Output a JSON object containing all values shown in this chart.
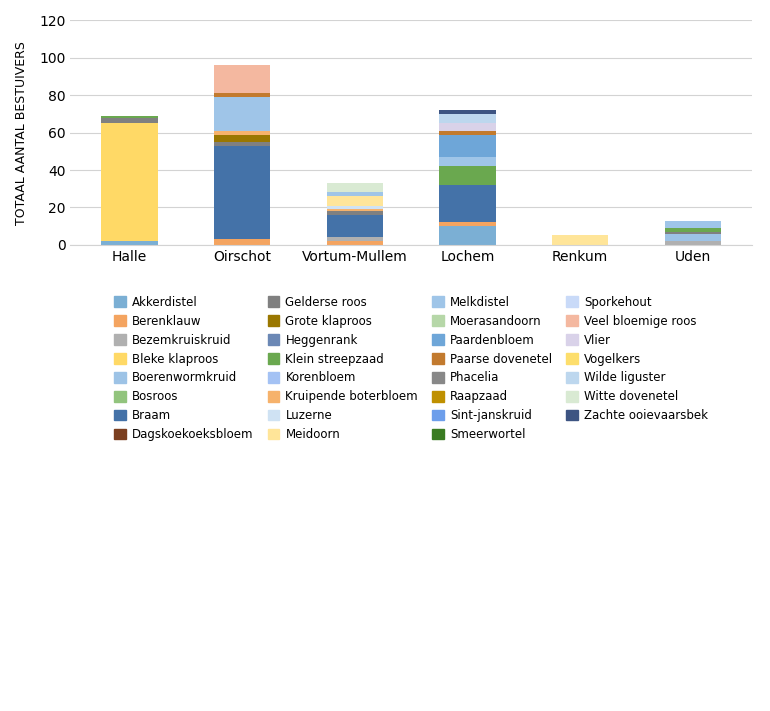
{
  "locations": [
    "Halle",
    "Oirschot",
    "Vortum-Mullem",
    "Lochem",
    "Renkum",
    "Uden"
  ],
  "ylabel": "TOTAAL AANTAL BESTUIVERS",
  "ylim": [
    0,
    120
  ],
  "yticks": [
    0,
    20,
    40,
    60,
    80,
    100,
    120
  ],
  "legend_order": [
    "Akkerdistel",
    "Berenklauw",
    "Bezemkruiskruid",
    "Bleke klaproos",
    "Boerenwormkruid",
    "Bosroos",
    "Braam",
    "Dagskoekoeksbloem",
    "Gelderse roos",
    "Grote klaproos",
    "Heggenrank",
    "Klein streepzaad",
    "Korenbloem",
    "Kruipende boterbloem",
    "Luzerne",
    "Meidoorn",
    "Melkdistel",
    "Moerasandoorn",
    "Paardenbloem",
    "Paarse dovenetel",
    "Phacelia",
    "Raapzaad",
    "Sint-janskruid",
    "Smeerwortel",
    "Sporkehout",
    "Veel bloemige roos",
    "Vlier",
    "Vogelkers",
    "Wilde liguster",
    "Witte dovenetel",
    "Zachte ooievaarsbek"
  ],
  "species": [
    {
      "name": "Akkerdistel",
      "color": "#7BAFD4",
      "values": [
        2,
        0,
        0,
        10,
        0,
        0
      ]
    },
    {
      "name": "Berenklauw",
      "color": "#F4A460",
      "values": [
        0,
        3,
        2,
        2,
        0,
        0
      ]
    },
    {
      "name": "Bezemkruiskruid",
      "color": "#B0B0B0",
      "values": [
        0,
        0,
        2,
        0,
        0,
        2
      ]
    },
    {
      "name": "Bleke klaproos",
      "color": "#FFD966",
      "values": [
        63,
        0,
        0,
        0,
        0,
        0
      ]
    },
    {
      "name": "Boerenwormkruid",
      "color": "#9DC3E6",
      "values": [
        0,
        0,
        0,
        0,
        0,
        4
      ]
    },
    {
      "name": "Bosroos",
      "color": "#92C47D",
      "values": [
        0,
        0,
        0,
        0,
        0,
        0
      ]
    },
    {
      "name": "Braam",
      "color": "#4472A8",
      "values": [
        0,
        50,
        12,
        20,
        0,
        0
      ]
    },
    {
      "name": "Dagskoekoeksbloem",
      "color": "#7B3F20",
      "values": [
        0,
        0,
        0,
        0,
        0,
        0
      ]
    },
    {
      "name": "Gelderse roos",
      "color": "#808080",
      "values": [
        3,
        2,
        2,
        0,
        0,
        1
      ]
    },
    {
      "name": "Grote klaproos",
      "color": "#9A7700",
      "values": [
        0,
        4,
        0,
        0,
        0,
        0
      ]
    },
    {
      "name": "Heggenrank",
      "color": "#6B88B5",
      "values": [
        0,
        0,
        0,
        0,
        0,
        0
      ]
    },
    {
      "name": "Klein streepzaad",
      "color": "#6AA84F",
      "values": [
        1,
        0,
        0,
        10,
        0,
        2
      ]
    },
    {
      "name": "Korenbloem",
      "color": "#A4C2F4",
      "values": [
        0,
        0,
        0,
        0,
        0,
        0
      ]
    },
    {
      "name": "Kruipende boterbloem",
      "color": "#F6B26B",
      "values": [
        0,
        2,
        1,
        0,
        0,
        0
      ]
    },
    {
      "name": "Luzerne",
      "color": "#CFE2F3",
      "values": [
        0,
        0,
        2,
        0,
        0,
        0
      ]
    },
    {
      "name": "Meidoorn",
      "color": "#FFE599",
      "values": [
        0,
        0,
        5,
        0,
        5,
        0
      ]
    },
    {
      "name": "Melkdistel",
      "color": "#9FC5E8",
      "values": [
        0,
        18,
        2,
        5,
        0,
        4
      ]
    },
    {
      "name": "Moerasandoorn",
      "color": "#B6D7A8",
      "values": [
        0,
        0,
        0,
        0,
        0,
        0
      ]
    },
    {
      "name": "Paardenbloem",
      "color": "#6EA6D8",
      "values": [
        0,
        0,
        0,
        12,
        0,
        0
      ]
    },
    {
      "name": "Paarse dovenetel",
      "color": "#C27A2E",
      "values": [
        0,
        2,
        0,
        2,
        0,
        0
      ]
    },
    {
      "name": "Phacelia",
      "color": "#888888",
      "values": [
        0,
        0,
        0,
        0,
        0,
        0
      ]
    },
    {
      "name": "Raapzaad",
      "color": "#BF9000",
      "values": [
        0,
        0,
        0,
        0,
        0,
        0
      ]
    },
    {
      "name": "Sint-janskruid",
      "color": "#6D9EEB",
      "values": [
        0,
        0,
        0,
        0,
        0,
        0
      ]
    },
    {
      "name": "Smeerwortel",
      "color": "#3A7B22",
      "values": [
        0,
        0,
        0,
        0,
        0,
        0
      ]
    },
    {
      "name": "Sporkehout",
      "color": "#C9DAF8",
      "values": [
        0,
        0,
        0,
        0,
        0,
        0
      ]
    },
    {
      "name": "Veel bloemige roos",
      "color": "#F4B8A0",
      "values": [
        0,
        15,
        0,
        0,
        0,
        0
      ]
    },
    {
      "name": "Vlier",
      "color": "#D9D2E9",
      "values": [
        0,
        0,
        0,
        4,
        0,
        0
      ]
    },
    {
      "name": "Vogelkers",
      "color": "#FDDE6C",
      "values": [
        0,
        0,
        0,
        0,
        0,
        0
      ]
    },
    {
      "name": "Wilde liguster",
      "color": "#BDD7EE",
      "values": [
        0,
        0,
        0,
        5,
        0,
        0
      ]
    },
    {
      "name": "Witte dovenetel",
      "color": "#D9EAD3",
      "values": [
        0,
        0,
        5,
        0,
        0,
        0
      ]
    },
    {
      "name": "Zachte ooievaarsbek",
      "color": "#3D5482",
      "values": [
        0,
        0,
        0,
        2,
        0,
        0
      ]
    }
  ]
}
